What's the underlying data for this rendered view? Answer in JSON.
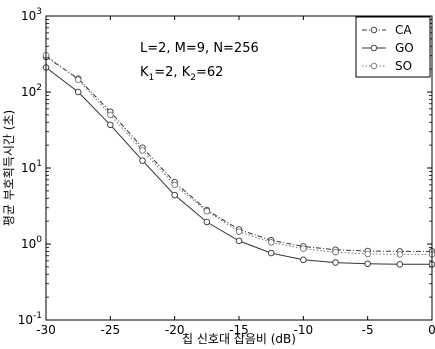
{
  "chart_data": {
    "type": "line",
    "xlabel": "칩 신호대 잡음비 (dB)",
    "ylabel": "평균 부호획득시간 (초)",
    "xlim": [
      -30,
      0
    ],
    "ylim": [
      0.1,
      1000
    ],
    "yscale": "log",
    "xticks": [
      "-30",
      "-25",
      "-20",
      "-15",
      "-10",
      "-5",
      "0"
    ],
    "yticks": [
      {
        "base": "10",
        "exp": "-1",
        "value": 0.1
      },
      {
        "base": "10",
        "exp": "0",
        "value": 1
      },
      {
        "base": "10",
        "exp": "1",
        "value": 10
      },
      {
        "base": "10",
        "exp": "2",
        "value": 100
      },
      {
        "base": "10",
        "exp": "3",
        "value": 1000
      }
    ],
    "annotations": {
      "line1": "L=2, M=9, N=256",
      "line2": {
        "a": "K",
        "a_sub": "1",
        "mid": "=2, K",
        "b_sub": "2",
        "tail": "=62"
      }
    },
    "legend_position": "top-right",
    "series": [
      {
        "name": "CA",
        "style": "dash-dot",
        "x": [
          -30,
          -27.5,
          -25,
          -22.5,
          -20,
          -17.5,
          -15,
          -12.5,
          -10,
          -7.5,
          -5,
          -2.5,
          0
        ],
        "values": [
          290,
          150,
          55,
          18.5,
          6.5,
          2.8,
          1.55,
          1.12,
          0.93,
          0.84,
          0.81,
          0.8,
          0.8
        ]
      },
      {
        "name": "GO",
        "style": "solid",
        "x": [
          -30,
          -27.5,
          -25,
          -22.5,
          -20,
          -17.5,
          -15,
          -12.5,
          -10,
          -7.5,
          -5,
          -2.5,
          0
        ],
        "values": [
          210,
          100,
          37,
          12.5,
          4.4,
          1.95,
          1.1,
          0.76,
          0.62,
          0.57,
          0.55,
          0.54,
          0.54
        ]
      },
      {
        "name": "SO",
        "style": "dotted",
        "x": [
          -30,
          -27.5,
          -25,
          -22.5,
          -20,
          -17.5,
          -15,
          -12.5,
          -10,
          -7.5,
          -5,
          -2.5,
          0
        ],
        "values": [
          305,
          145,
          50,
          17,
          6,
          2.7,
          1.45,
          1.05,
          0.87,
          0.78,
          0.74,
          0.73,
          0.73
        ]
      }
    ]
  }
}
